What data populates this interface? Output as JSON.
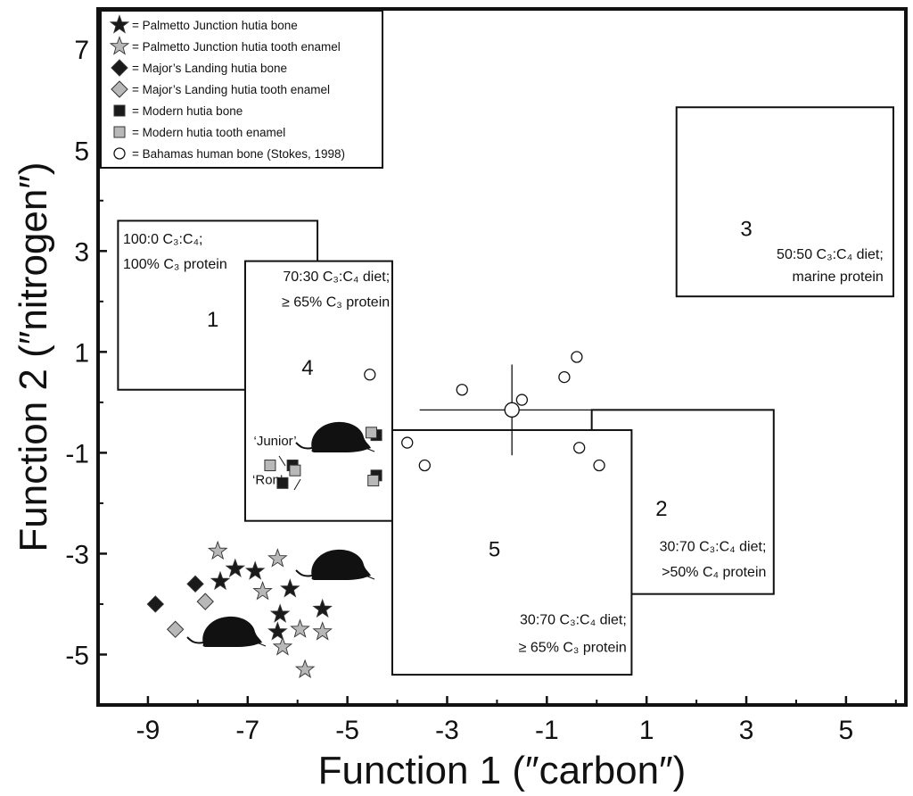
{
  "chart_data": {
    "type": "scatter",
    "xlabel": "Function 1 (″carbon″)",
    "ylabel": "Function 2 (″nitrogen″)",
    "xlim": [
      -10,
      6.2
    ],
    "ylim": [
      -6,
      7.8
    ],
    "xticks": [
      "-9",
      "-7",
      "-5",
      "-3",
      "-1",
      "1",
      "3",
      "5"
    ],
    "yticks": [
      "7",
      "5",
      "3",
      "1",
      "-1",
      "-3",
      "-5"
    ],
    "grid": false,
    "legend_position": "top-left",
    "legend": [
      {
        "series": "palmetto_bone",
        "label": "= Palmetto Junction hutia bone",
        "marker": "star",
        "color": "#1a1a1a"
      },
      {
        "series": "palmetto_enamel",
        "label": "= Palmetto Junction hutia tooth enamel",
        "marker": "star",
        "color": "#b8b8b8"
      },
      {
        "series": "majors_bone",
        "label": "= Major’s Landing hutia bone",
        "marker": "diamond",
        "color": "#1a1a1a"
      },
      {
        "series": "majors_enamel",
        "label": "= Major’s Landing hutia tooth enamel",
        "marker": "diamond",
        "color": "#b8b8b8"
      },
      {
        "series": "modern_bone",
        "label": "= Modern hutia bone",
        "marker": "square",
        "color": "#1a1a1a"
      },
      {
        "series": "modern_enamel",
        "label": "= Modern hutia tooth enamel",
        "marker": "square",
        "color": "#b8b8b8"
      },
      {
        "series": "human_bone",
        "label": "= Bahamas human bone (Stokes, 1998)",
        "marker": "circle",
        "color": "#ffffff"
      }
    ],
    "series": [
      {
        "id": "palmetto_bone",
        "marker": "star",
        "color": "#1a1a1a",
        "points": [
          [
            -7.25,
            -3.3
          ],
          [
            -7.55,
            -3.55
          ],
          [
            -6.85,
            -3.35
          ],
          [
            -6.15,
            -3.7
          ],
          [
            -6.35,
            -4.2
          ],
          [
            -5.5,
            -4.1
          ],
          [
            -6.4,
            -4.55
          ]
        ]
      },
      {
        "id": "palmetto_enamel",
        "marker": "star",
        "color": "#b8b8b8",
        "points": [
          [
            -7.6,
            -2.95
          ],
          [
            -6.4,
            -3.1
          ],
          [
            -6.7,
            -3.75
          ],
          [
            -5.95,
            -4.5
          ],
          [
            -5.5,
            -4.55
          ],
          [
            -6.3,
            -4.85
          ],
          [
            -5.85,
            -5.3
          ]
        ]
      },
      {
        "id": "majors_bone",
        "marker": "diamond",
        "color": "#1a1a1a",
        "points": [
          [
            -8.85,
            -4.0
          ],
          [
            -8.05,
            -3.6
          ]
        ]
      },
      {
        "id": "majors_enamel",
        "marker": "diamond",
        "color": "#b8b8b8",
        "points": [
          [
            -8.45,
            -4.5
          ],
          [
            -7.85,
            -3.95
          ]
        ]
      },
      {
        "id": "modern_bone",
        "marker": "square",
        "color": "#1a1a1a",
        "points": [
          [
            -4.42,
            -0.65
          ],
          [
            -6.1,
            -1.25
          ],
          [
            -6.3,
            -1.6
          ],
          [
            -4.42,
            -1.45
          ]
        ]
      },
      {
        "id": "modern_enamel",
        "marker": "square",
        "color": "#b8b8b8",
        "points": [
          [
            -4.52,
            -0.6
          ],
          [
            -6.55,
            -1.25
          ],
          [
            -6.05,
            -1.35
          ],
          [
            -4.48,
            -1.55
          ]
        ]
      },
      {
        "id": "human_bone",
        "marker": "circle",
        "color": "#ffffff",
        "points": [
          [
            -4.55,
            0.55
          ],
          [
            -2.7,
            0.25
          ],
          [
            -1.5,
            0.05
          ],
          [
            -0.65,
            0.5
          ],
          [
            -0.4,
            0.9
          ],
          [
            -3.8,
            -0.8
          ],
          [
            -3.45,
            -1.25
          ],
          [
            -0.35,
            -0.9
          ],
          [
            0.05,
            -1.25
          ]
        ]
      },
      {
        "id": "human_bone_mean",
        "marker": "circle-large",
        "color": "#ffffff",
        "points": [
          [
            -1.7,
            -0.15
          ]
        ],
        "error_x": [
          -3.55,
          0.0
        ],
        "error_y": [
          -1.05,
          0.75
        ]
      }
    ],
    "regions": [
      {
        "id": "1",
        "number": "1",
        "x": [
          -9.6,
          -5.6
        ],
        "y": [
          0.25,
          3.6
        ],
        "lines": [
          "100:0 C₃:C₄;",
          "100% C₃ protein"
        ]
      },
      {
        "id": "4",
        "number": "4",
        "x": [
          -7.05,
          -4.1
        ],
        "y": [
          -2.35,
          2.8
        ],
        "lines": [
          "70:30 C₃:C₄ diet;",
          "≥ 65% C₃ protein"
        ]
      },
      {
        "id": "3",
        "number": "3",
        "x": [
          1.6,
          5.95
        ],
        "y": [
          2.1,
          5.85
        ],
        "lines": [
          "50:50 C₃:C₄ diet;",
          "marine protein"
        ]
      },
      {
        "id": "2",
        "number": "2",
        "x": [
          -0.1,
          3.55
        ],
        "y": [
          -3.8,
          -0.15
        ],
        "lines": [
          "30:70 C₃:C₄ diet;",
          ">50% C₄ protein"
        ]
      },
      {
        "id": "5",
        "number": "5",
        "x": [
          -4.1,
          0.7
        ],
        "y": [
          -5.4,
          -0.55
        ],
        "lines": [
          "30:70 C₃:C₄ diet;",
          "≥ 65% C₃ protein"
        ]
      }
    ],
    "annotations": [
      {
        "text": "‘Junior’",
        "x": -6.45,
        "y": -0.85
      },
      {
        "text": "‘Ron’",
        "x": -6.6,
        "y": -1.62
      }
    ]
  }
}
